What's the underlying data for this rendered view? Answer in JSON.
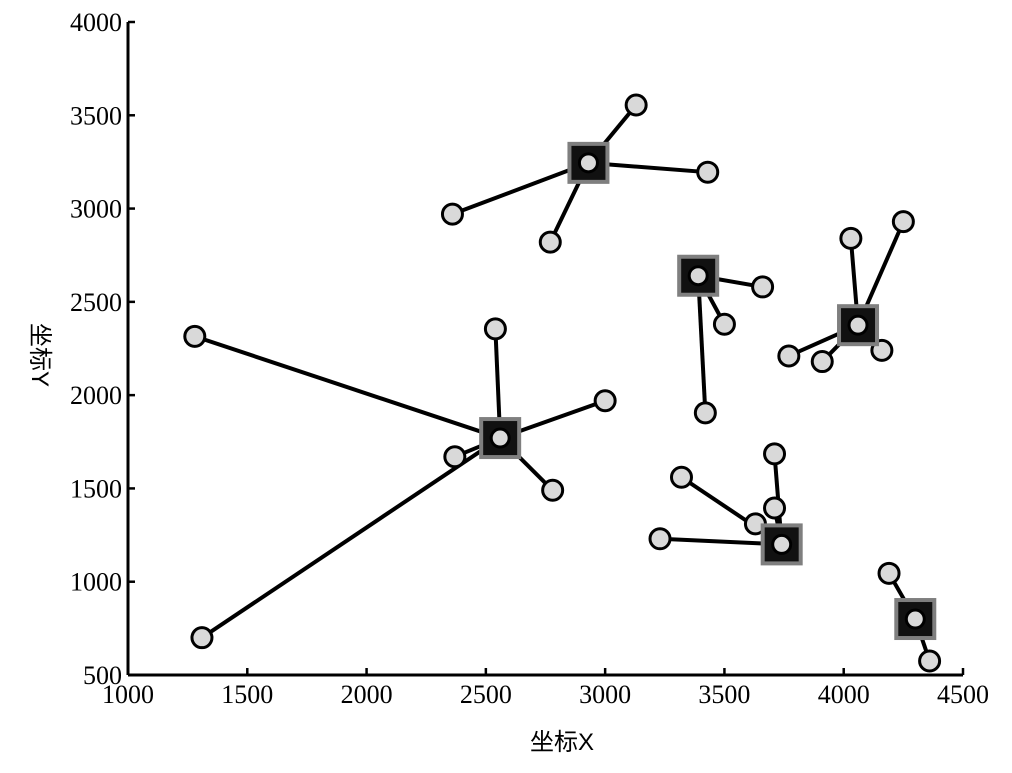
{
  "chart_data": {
    "type": "scatter",
    "xlabel": "坐标X",
    "ylabel": "坐标Y",
    "xlim": [
      1000,
      4500
    ],
    "ylim": [
      500,
      4000
    ],
    "xticks": [
      1000,
      1500,
      2000,
      2500,
      3000,
      3500,
      4000,
      4500
    ],
    "yticks": [
      500,
      1000,
      1500,
      2000,
      2500,
      3000,
      3500,
      4000
    ],
    "grid": false,
    "legend": "none",
    "colors": {
      "line": "#000000",
      "point_fill": "#d9d9d9",
      "center_fill": "#111111",
      "center_border": "#7f7f7f"
    },
    "clusters": [
      {
        "center": [
          2930,
          3245
        ],
        "points": [
          [
            2360,
            2970
          ],
          [
            2770,
            2820
          ],
          [
            3130,
            3555
          ],
          [
            3430,
            3195
          ]
        ]
      },
      {
        "center": [
          3390,
          2640
        ],
        "points": [
          [
            3660,
            2580
          ],
          [
            3500,
            2380
          ],
          [
            3420,
            1905
          ]
        ]
      },
      {
        "center": [
          4060,
          2375
        ],
        "points": [
          [
            4030,
            2840
          ],
          [
            4250,
            2930
          ],
          [
            3770,
            2210
          ],
          [
            3910,
            2180
          ],
          [
            4160,
            2240
          ]
        ]
      },
      {
        "center": [
          2560,
          1770
        ],
        "points": [
          [
            1280,
            2315
          ],
          [
            2540,
            2355
          ],
          [
            3000,
            1970
          ],
          [
            2370,
            1670
          ],
          [
            2780,
            1490
          ],
          [
            1310,
            700
          ]
        ]
      },
      {
        "center": [
          3740,
          1200
        ],
        "points": [
          [
            3710,
            1685
          ],
          [
            3320,
            1560
          ],
          [
            3710,
            1395
          ],
          [
            3630,
            1310
          ],
          [
            3230,
            1230
          ]
        ]
      },
      {
        "center": [
          4300,
          800
        ],
        "points": [
          [
            4190,
            1045
          ],
          [
            4360,
            575
          ]
        ]
      }
    ]
  }
}
